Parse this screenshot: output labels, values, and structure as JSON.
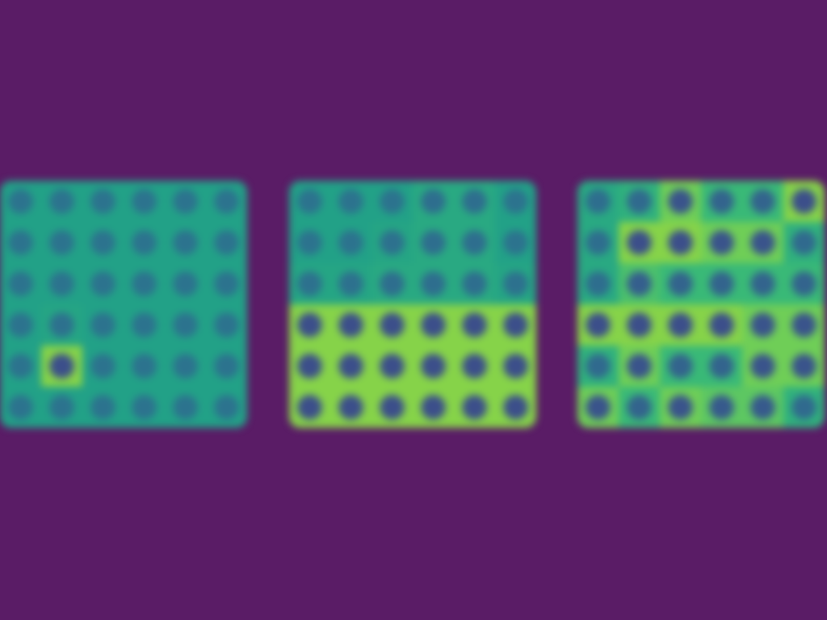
{
  "chart_data": [
    {
      "type": "heatmap",
      "tick_labels": false,
      "cells": [
        [
          0.2,
          0.2,
          0.2,
          0.2,
          0.2,
          0.2
        ],
        [
          0.2,
          0.2,
          0.2,
          0.2,
          0.2,
          0.2
        ],
        [
          0.2,
          0.2,
          0.2,
          0.2,
          0.2,
          0.2
        ],
        [
          0.2,
          0.25,
          0.2,
          0.2,
          0.2,
          0.2
        ],
        [
          0.2,
          0.9,
          0.2,
          0.2,
          0.2,
          0.2
        ],
        [
          0.2,
          0.2,
          0.2,
          0.2,
          0.2,
          0.2
        ]
      ]
    },
    {
      "type": "heatmap",
      "tick_labels": false,
      "cells": [
        [
          0.2,
          0.2,
          0.2,
          0.3,
          0.3,
          0.2
        ],
        [
          0.2,
          0.2,
          0.25,
          0.3,
          0.3,
          0.2
        ],
        [
          0.25,
          0.25,
          0.3,
          0.3,
          0.3,
          0.25
        ],
        [
          0.9,
          0.9,
          0.9,
          0.9,
          0.9,
          0.9
        ],
        [
          0.9,
          0.9,
          0.9,
          0.9,
          0.9,
          0.9
        ],
        [
          0.9,
          0.9,
          0.9,
          0.9,
          0.9,
          0.9
        ]
      ]
    },
    {
      "type": "heatmap",
      "tick_labels": false,
      "cells": [
        [
          0.3,
          0.4,
          0.8,
          0.5,
          0.5,
          0.9
        ],
        [
          0.3,
          0.9,
          0.9,
          0.8,
          0.8,
          0.4
        ],
        [
          0.3,
          0.6,
          0.5,
          0.5,
          0.5,
          0.5
        ],
        [
          0.9,
          0.9,
          0.9,
          0.9,
          0.8,
          0.8
        ],
        [
          0.4,
          0.8,
          0.5,
          0.5,
          0.8,
          0.8
        ],
        [
          0.8,
          0.5,
          0.8,
          0.7,
          0.7,
          0.4
        ]
      ]
    }
  ]
}
